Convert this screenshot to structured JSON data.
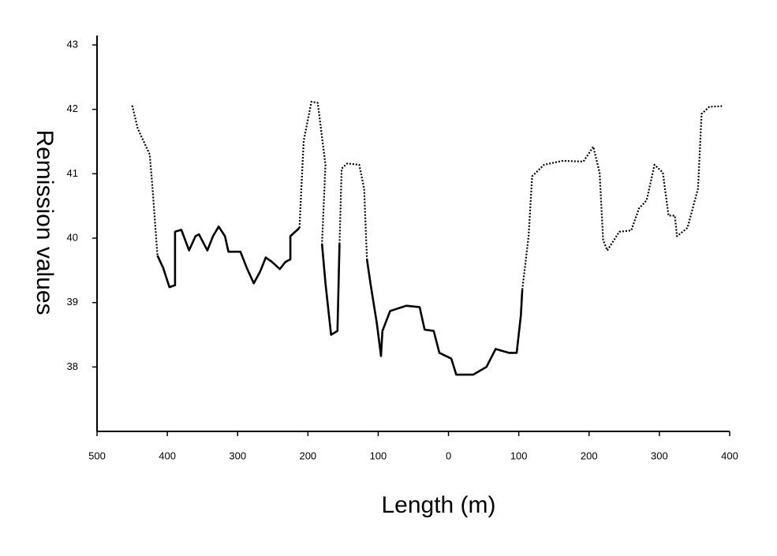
{
  "chart_data": {
    "type": "line",
    "xlabel": "Length (m)",
    "ylabel": "Remission values",
    "xlim": [
      -500,
      400
    ],
    "ylim": [
      37,
      43
    ],
    "xticks": [
      {
        "value": -500,
        "label": "500"
      },
      {
        "value": -400,
        "label": "400"
      },
      {
        "value": -300,
        "label": "300"
      },
      {
        "value": -200,
        "label": "200"
      },
      {
        "value": -100,
        "label": "100"
      },
      0,
      100,
      200,
      300,
      400
    ],
    "yticks": [
      38,
      39,
      40,
      41,
      42,
      43
    ],
    "grid": false,
    "x": [
      -450,
      -442,
      -425,
      -421,
      -414,
      -406,
      -397,
      -389,
      -389,
      -380,
      -369,
      -360,
      -355,
      -343,
      -335,
      -327,
      -318,
      -313,
      -296,
      -287,
      -277,
      -268,
      -260,
      -251,
      -240,
      -232,
      -225,
      -225,
      -212,
      -206,
      -195,
      -186,
      -175,
      -180,
      -175,
      -167,
      -158,
      -155,
      -152,
      -144,
      -127,
      -120,
      -116,
      -111,
      -102,
      -96,
      -94,
      -83,
      -60,
      -41,
      -34,
      -21,
      -13,
      4,
      11,
      35,
      54,
      67,
      86,
      97,
      103,
      105,
      114,
      119,
      136,
      162,
      192,
      206,
      215,
      220,
      226,
      243,
      260,
      271,
      282,
      293,
      305,
      313,
      322,
      325,
      340,
      355,
      360,
      371,
      389
    ],
    "series": [
      {
        "color": "#000000",
        "dash": "dotted",
        "values": [
          42.06,
          41.7,
          41.3,
          40.77,
          39.73,
          null,
          null,
          null,
          null,
          null,
          null,
          null,
          null,
          null,
          null,
          null,
          null,
          null,
          null,
          null,
          null,
          null,
          null,
          null,
          null,
          null,
          null,
          null,
          40.16,
          41.51,
          42.12,
          42.1,
          41.14,
          39.91,
          null,
          null,
          null,
          39.91,
          41.08,
          41.16,
          41.14,
          40.77,
          39.67,
          null,
          null,
          null,
          null,
          null,
          null,
          null,
          null,
          null,
          null,
          null,
          null,
          null,
          null,
          null,
          null,
          null,
          null,
          39.2,
          40.03,
          40.96,
          41.14,
          41.2,
          41.19,
          41.42,
          41.02,
          39.97,
          39.81,
          40.1,
          40.12,
          40.46,
          40.59,
          41.14,
          41.02,
          40.35,
          40.35,
          40.03,
          40.16,
          40.77,
          41.93,
          42.04,
          42.05
        ]
      },
      {
        "color": "#000000",
        "dash": "solid",
        "values": [
          null,
          null,
          null,
          null,
          39.73,
          39.54,
          39.24,
          39.27,
          40.1,
          40.13,
          39.81,
          40.03,
          40.06,
          39.81,
          40.03,
          40.18,
          40.03,
          39.79,
          39.79,
          39.54,
          39.3,
          39.48,
          39.7,
          39.63,
          39.52,
          39.63,
          39.67,
          40.03,
          40.16,
          null,
          null,
          null,
          null,
          39.91,
          39.3,
          38.5,
          38.56,
          39.91,
          null,
          null,
          null,
          null,
          39.67,
          39.3,
          38.68,
          38.17,
          38.56,
          38.87,
          38.95,
          38.93,
          38.58,
          38.56,
          38.22,
          38.13,
          37.88,
          37.88,
          38.0,
          38.28,
          38.22,
          38.22,
          38.8,
          39.2,
          null,
          null,
          null,
          null,
          null,
          null,
          null,
          null,
          null,
          null,
          null,
          null,
          null,
          null,
          null,
          null,
          null,
          null,
          null,
          null,
          null,
          null,
          null
        ]
      }
    ]
  }
}
